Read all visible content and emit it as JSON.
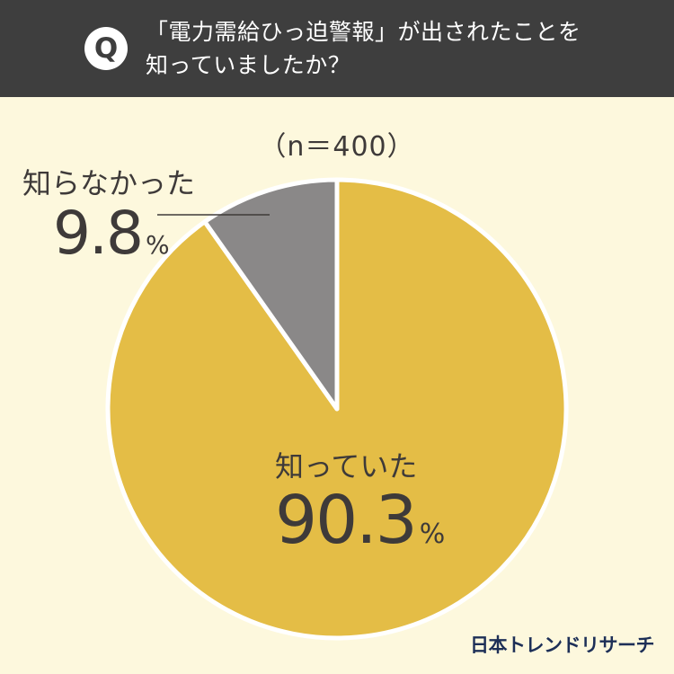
{
  "header": {
    "badge": "Q",
    "question_line1": "「電力需給ひっ迫警報」が出されたことを",
    "question_line2": "知っていましたか？"
  },
  "chart_data": {
    "type": "pie",
    "sample_size": "（n＝400）",
    "slices": [
      {
        "label": "知っていた",
        "value": 90.3,
        "display": "90.3",
        "color": "#e4bd46"
      },
      {
        "label": "知らなかった",
        "value": 9.8,
        "display": "9.8",
        "color": "#8a8888"
      }
    ],
    "percent_sign": "%",
    "start_angle_deg": 0,
    "direction": "clockwise",
    "slice_border_color": "#ffffff"
  },
  "footer": {
    "logo": "日本トレンドリサーチ"
  }
}
